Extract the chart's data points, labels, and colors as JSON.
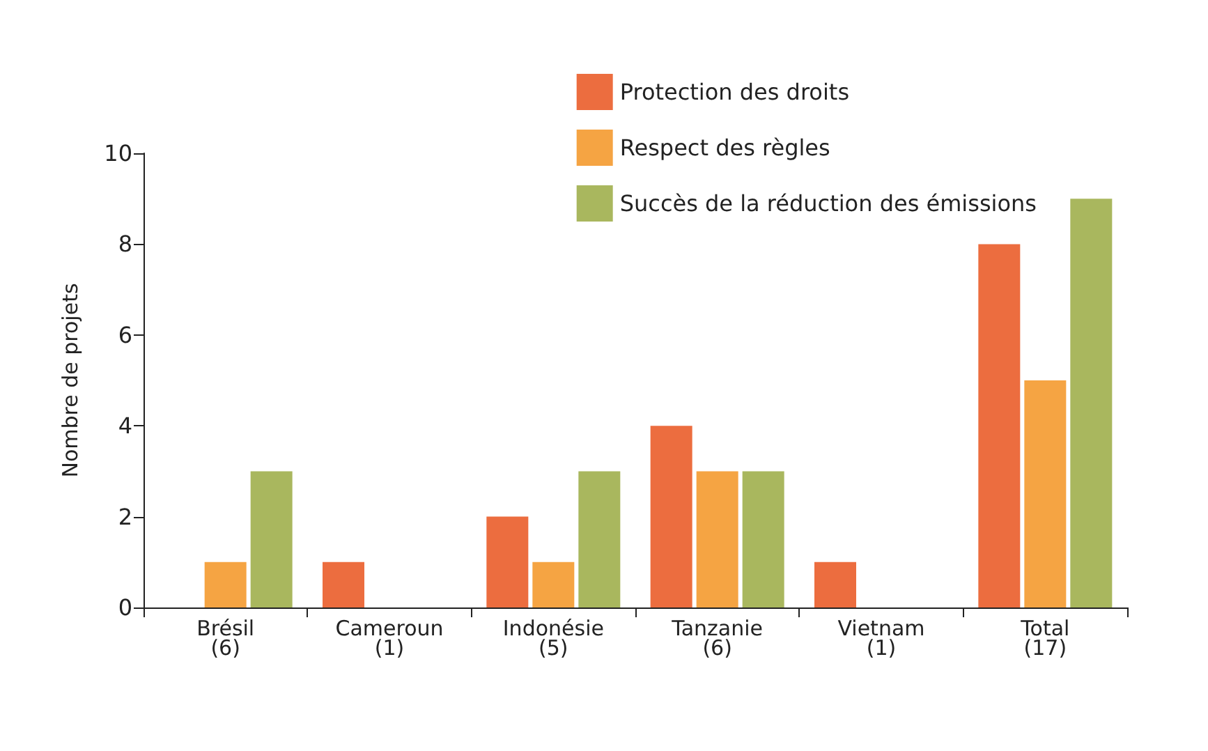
{
  "chart_data": {
    "type": "bar",
    "ylabel": "Nombre de projets",
    "categories": [
      "Brésil\n(6)",
      "Cameroun\n(1)",
      "Indonésie\n(5)",
      "Tanzanie\n(6)",
      "Vietnam\n(1)",
      "Total\n(17)"
    ],
    "series": [
      {
        "name": "Protection des droits",
        "color": "#ec6d3f",
        "values": [
          0,
          1,
          2,
          4,
          1,
          8
        ]
      },
      {
        "name": "Respect des règles",
        "color": "#f5a443",
        "values": [
          1,
          0,
          1,
          3,
          0,
          5
        ]
      },
      {
        "name": "Succès de la réduction des émissions",
        "color": "#a9b75e",
        "values": [
          3,
          0,
          3,
          3,
          0,
          9
        ]
      }
    ],
    "ylim": [
      0,
      10
    ],
    "yticks": [
      0,
      2,
      4,
      6,
      8,
      10
    ],
    "grid": false,
    "legend": "top right"
  }
}
